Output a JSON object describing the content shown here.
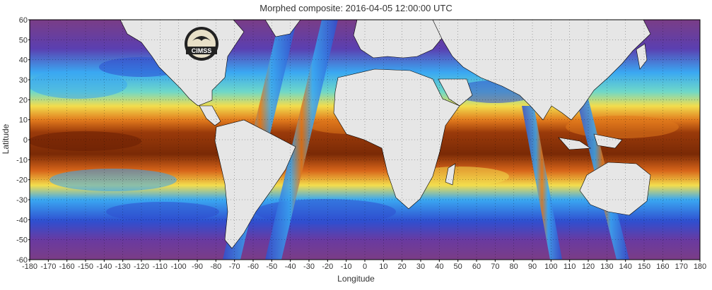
{
  "map": {
    "title": "Morphed composite: 2016-04-05 12:00:00 UTC",
    "xlabel": "Longitude",
    "ylabel": "Latitude",
    "x_ticks": [
      -180,
      -170,
      -160,
      -150,
      -140,
      -130,
      -120,
      -110,
      -100,
      -90,
      -80,
      -70,
      -60,
      -50,
      -40,
      -30,
      -20,
      -10,
      0,
      10,
      20,
      30,
      40,
      50,
      60,
      70,
      80,
      90,
      100,
      110,
      120,
      130,
      140,
      150,
      160,
      170,
      180
    ],
    "y_ticks": [
      60,
      50,
      40,
      30,
      20,
      10,
      0,
      -10,
      -20,
      -30,
      -40,
      -50,
      -60
    ],
    "x_range": [
      -180,
      180
    ],
    "y_range": [
      -60,
      60
    ],
    "logo_text": "CIMSS",
    "colors": {
      "background_field": "#7a3d86",
      "moist_high": "#8a2e06",
      "moist_mid": "#e0781c",
      "moist_low": "#f6e35a",
      "dry_mid": "#3aa8f2",
      "dry_low": "#2f4fd0",
      "land": "#e6e6e6",
      "land_border": "#000000"
    },
    "grid": true
  }
}
